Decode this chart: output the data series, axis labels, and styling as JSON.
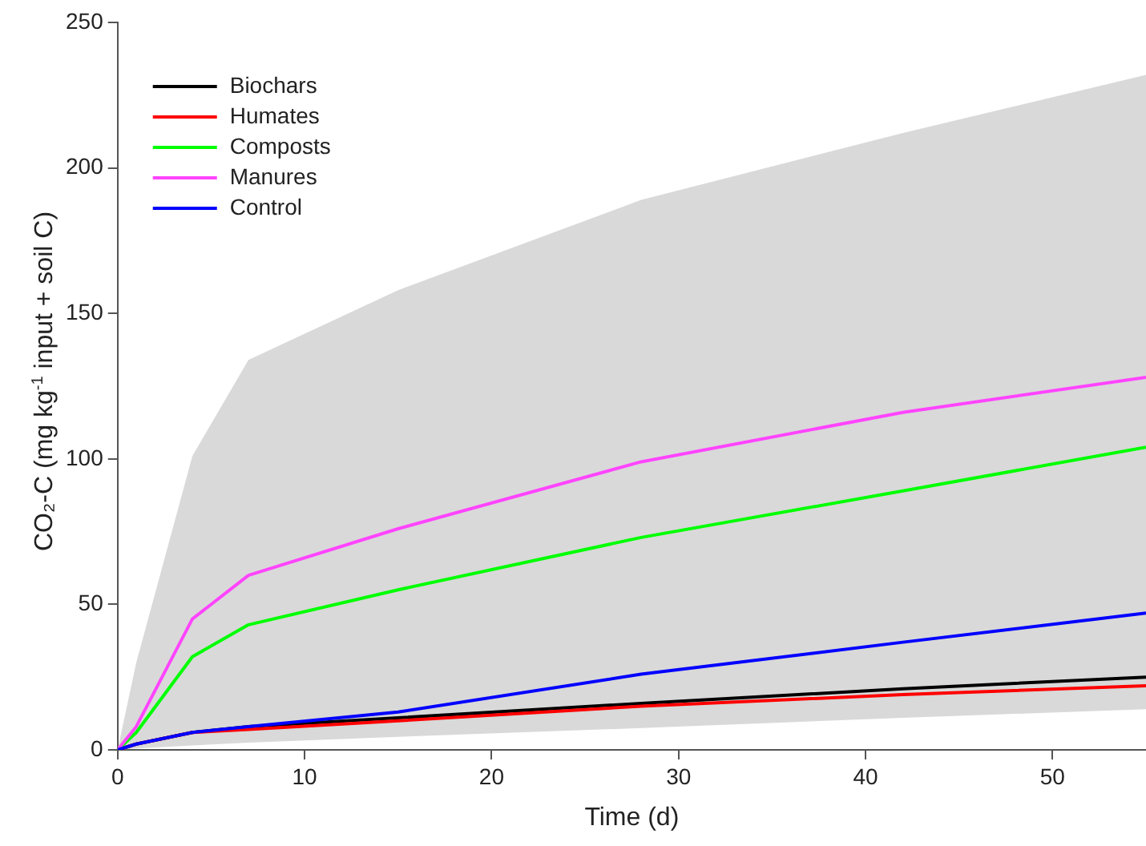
{
  "chart_data": {
    "type": "line",
    "xlabel": "Time (d)",
    "ylabel": "CO₂-C (mg kg$^{-1}$ input + soil C)",
    "x": [
      0,
      1,
      4,
      7,
      15,
      28,
      42,
      55
    ],
    "xlim": [
      0,
      55
    ],
    "xticks": [
      0,
      10,
      20,
      30,
      40,
      50
    ],
    "ylim": [
      0,
      250
    ],
    "yticks": [
      0,
      50,
      100,
      150,
      200,
      250
    ],
    "grid": false,
    "legend": "top left",
    "series": [
      {
        "type": "area",
        "color": "#d9d9d9",
        "values": [
          null,
          null,
          null,
          null,
          null,
          null,
          null,
          null
        ],
        "lower": [
          0,
          0.5,
          1.5,
          2.5,
          4.5,
          7.5,
          11,
          14
        ],
        "upper": [
          0,
          30,
          101,
          134,
          158,
          189,
          212,
          232
        ]
      },
      {
        "name": "Biochars",
        "color": "#000000",
        "values": [
          0,
          2,
          6,
          8,
          11,
          16,
          21,
          25
        ]
      },
      {
        "name": "Humates",
        "color": "#ff0000",
        "values": [
          0,
          2,
          6,
          7,
          10,
          15,
          19,
          22
        ]
      },
      {
        "name": "Composts",
        "color": "#00ff00",
        "values": [
          0,
          6,
          32,
          43,
          55,
          73,
          89,
          104
        ]
      },
      {
        "name": "Manures",
        "color": "#ff44ff",
        "values": [
          0,
          8,
          45,
          60,
          76,
          99,
          116,
          128
        ]
      },
      {
        "name": "Control",
        "color": "#0000ff",
        "values": [
          0,
          2,
          6,
          8,
          13,
          26,
          37,
          47
        ]
      }
    ]
  }
}
